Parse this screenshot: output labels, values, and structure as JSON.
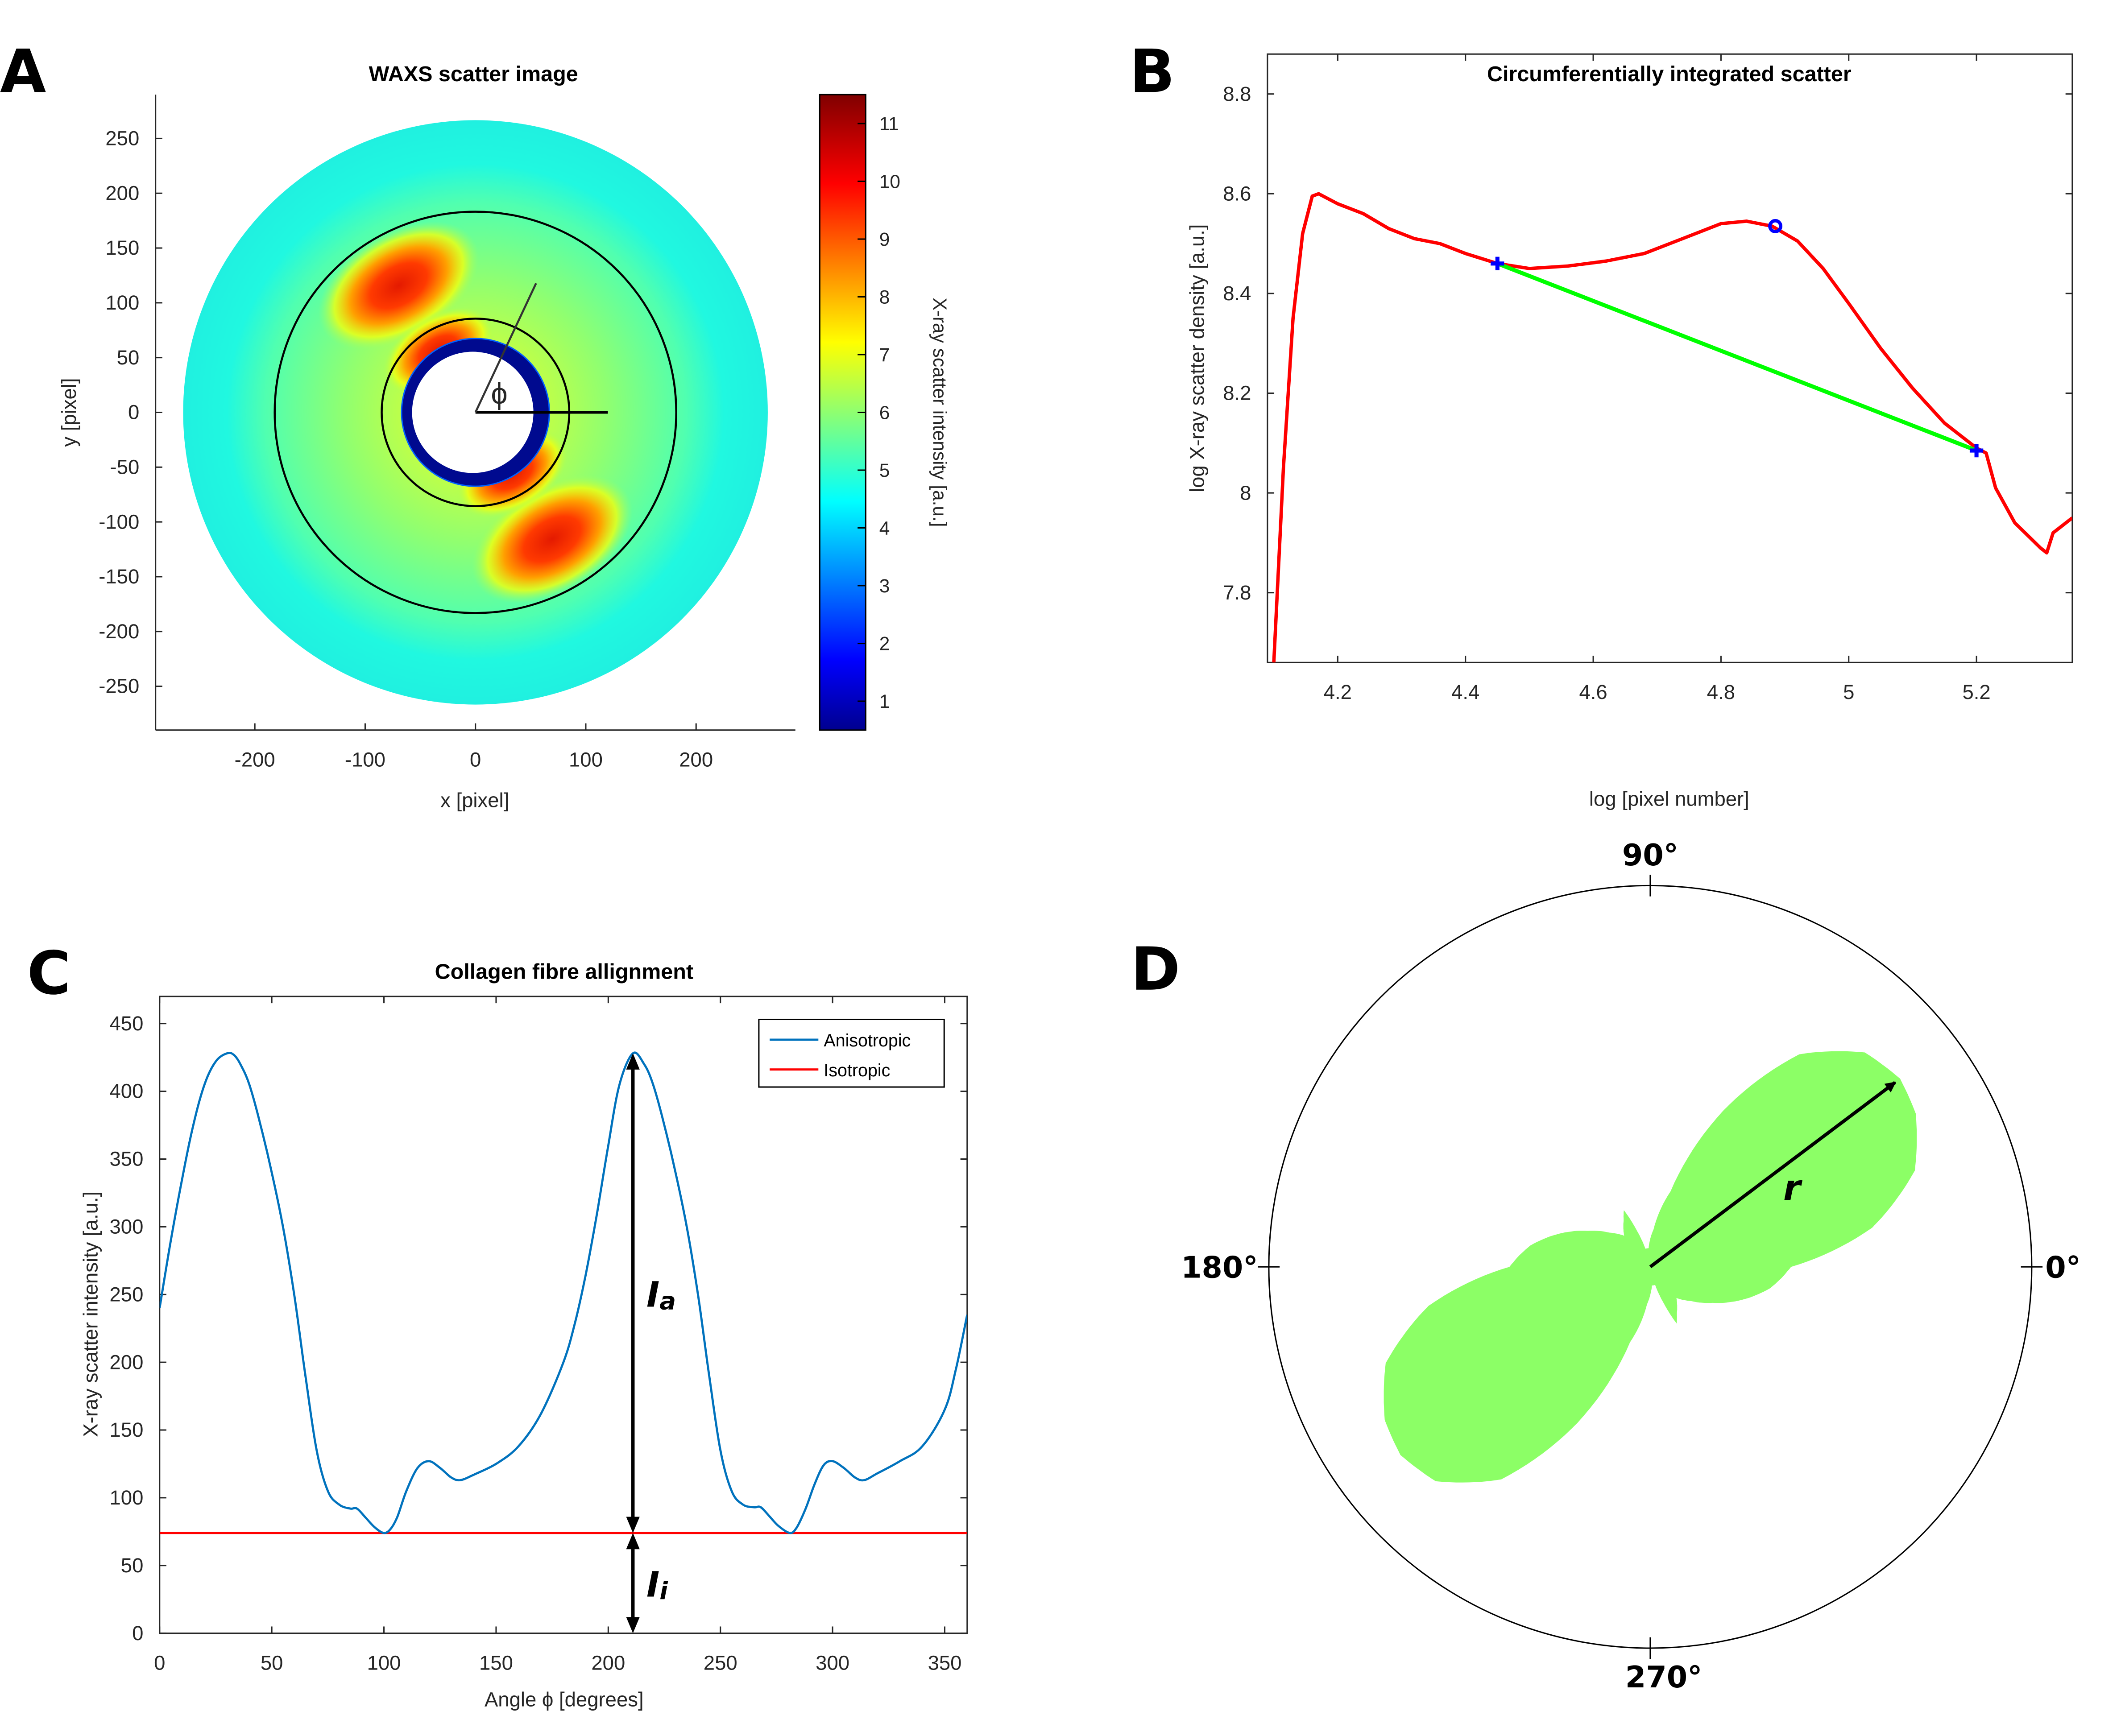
{
  "figure": {
    "panels": [
      "A",
      "B",
      "C",
      "D"
    ]
  },
  "chart_data": [
    {
      "panel": "A",
      "type": "heatmap",
      "title": "WAXS scatter image",
      "xlabel": "x [pixel]",
      "ylabel": "y [pixel]",
      "xlim": [
        -290,
        290
      ],
      "ylim": [
        -290,
        290
      ],
      "xticks": [
        -200,
        -100,
        0,
        100,
        200
      ],
      "yticks": [
        250,
        200,
        150,
        100,
        50,
        0,
        -50,
        -100,
        -150,
        -200,
        -250
      ],
      "colorbar": {
        "label": "X-ray scatter intensity [a.u.]",
        "ticks": [
          11,
          10,
          9,
          8,
          7,
          6,
          5,
          4,
          3,
          2,
          1
        ],
        "range": [
          0.5,
          11.5
        ],
        "colormap": "jet"
      },
      "detector_radius": 265,
      "beamstop_radius": 55,
      "integration_circles_radius": [
        85,
        182
      ],
      "angle_symbol": "ϕ",
      "angle_line_deg": 65,
      "hotspot_angles_deg": [
        121,
        301
      ],
      "background_value": 4.6,
      "hotspot_value": 10.5
    },
    {
      "panel": "B",
      "type": "line",
      "title": "Circumferentially integrated scatter",
      "xlabel": "log [pixel number]",
      "ylabel": "log X-ray scatter density [a.u.]",
      "xlim": [
        4.09,
        5.35
      ],
      "ylim": [
        7.66,
        8.88
      ],
      "xticks": [
        "4.2",
        "4.4",
        "4.6",
        "4.8",
        "5",
        "5.2"
      ],
      "yticks": [
        "7.8",
        "8",
        "8.2",
        "8.4",
        "8.6",
        "8.8"
      ],
      "series": [
        {
          "name": "scatter",
          "color": "#ff0000",
          "x": [
            4.1,
            4.115,
            4.13,
            4.145,
            4.16,
            4.17,
            4.2,
            4.24,
            4.28,
            4.32,
            4.36,
            4.4,
            4.45,
            4.5,
            4.56,
            4.62,
            4.68,
            4.74,
            4.8,
            4.84,
            4.88,
            4.92,
            4.96,
            5.0,
            5.05,
            5.1,
            5.15,
            5.2,
            5.215,
            5.23,
            5.26,
            5.3,
            5.31,
            5.32,
            5.35
          ],
          "y": [
            7.66,
            8.05,
            8.35,
            8.52,
            8.595,
            8.6,
            8.58,
            8.56,
            8.53,
            8.51,
            8.5,
            8.48,
            8.46,
            8.45,
            8.455,
            8.465,
            8.48,
            8.51,
            8.54,
            8.545,
            8.535,
            8.505,
            8.45,
            8.38,
            8.29,
            8.21,
            8.14,
            8.09,
            8.08,
            8.01,
            7.94,
            7.89,
            7.88,
            7.92,
            7.95
          ]
        },
        {
          "name": "baseline",
          "color": "#00ff00",
          "x": [
            4.45,
            5.2
          ],
          "y": [
            8.46,
            8.085
          ]
        }
      ],
      "markers": [
        {
          "shape": "plus",
          "x": 4.45,
          "y": 8.46,
          "color": "#0000ff"
        },
        {
          "shape": "circle",
          "x": 4.885,
          "y": 8.535,
          "color": "#0000ff"
        },
        {
          "shape": "plus",
          "x": 5.2,
          "y": 8.085,
          "color": "#0000ff"
        }
      ]
    },
    {
      "panel": "C",
      "type": "line",
      "title": "Collagen fibre allignment",
      "xlabel": "Angle ϕ [degrees]",
      "ylabel": "X-ray scatter intensity [a.u.]",
      "xlim": [
        0,
        360
      ],
      "ylim": [
        0,
        470
      ],
      "xticks": [
        0,
        50,
        100,
        150,
        200,
        250,
        300,
        350
      ],
      "yticks": [
        0,
        50,
        100,
        150,
        200,
        250,
        300,
        350,
        400,
        450
      ],
      "legend": {
        "position": "top-right",
        "entries": [
          "Anisotropic",
          "Isotropic"
        ]
      },
      "series": [
        {
          "name": "Anisotropic",
          "color": "#0072bd",
          "x": [
            0,
            5,
            10,
            15,
            20,
            25,
            30,
            33,
            36,
            40,
            45,
            50,
            55,
            60,
            65,
            70,
            75,
            80,
            85,
            88,
            92,
            96,
            100,
            103,
            106,
            110,
            115,
            120,
            125,
            130,
            134,
            140,
            150,
            160,
            170,
            180,
            185,
            190,
            195,
            200,
            205,
            211,
            216,
            220,
            225,
            230,
            235,
            240,
            245,
            250,
            255,
            260,
            265,
            268,
            272,
            276,
            281,
            284,
            288,
            292,
            296,
            300,
            305,
            310,
            314,
            320,
            330,
            340,
            350,
            355,
            360
          ],
          "y": [
            240,
            290,
            335,
            375,
            405,
            422,
            428,
            427,
            420,
            405,
            375,
            340,
            300,
            250,
            190,
            135,
            105,
            95,
            92,
            92,
            85,
            78,
            74,
            77,
            86,
            105,
            122,
            127,
            122,
            115,
            113,
            117,
            125,
            138,
            162,
            200,
            228,
            265,
            310,
            360,
            405,
            428,
            420,
            405,
            375,
            340,
            300,
            250,
            190,
            135,
            105,
            95,
            93,
            93,
            86,
            79,
            74,
            78,
            92,
            110,
            124,
            127,
            122,
            115,
            113,
            118,
            127,
            138,
            165,
            195,
            235
          ]
        },
        {
          "name": "Isotropic",
          "color": "#ff0000",
          "x": [
            0,
            360
          ],
          "y": [
            74,
            74
          ]
        }
      ],
      "annotations": [
        {
          "label": "I",
          "subscript": "a",
          "x": 211,
          "y_from": 74,
          "y_to": 428
        },
        {
          "label": "I",
          "subscript": "i",
          "x": 211,
          "y_from": 0,
          "y_to": 74
        }
      ]
    },
    {
      "panel": "D",
      "type": "polar",
      "angle_labels": [
        "90°",
        "180°",
        "0°",
        "270°"
      ],
      "fill_color": "#8cff66",
      "lobe_direction_deg": 37,
      "radius_label": "r",
      "theta_deg": [
        0,
        10,
        20,
        30,
        37,
        45,
        55,
        65,
        75,
        85,
        95,
        105,
        110,
        115,
        120,
        130,
        140,
        150,
        160,
        170,
        180,
        190,
        200,
        210,
        217,
        225,
        235,
        245,
        255,
        265,
        275,
        285,
        290,
        295,
        300,
        310,
        320,
        330,
        340,
        350,
        360
      ],
      "r_norm": [
        0.45,
        0.72,
        0.9,
        0.98,
        1.0,
        0.97,
        0.83,
        0.55,
        0.25,
        0.12,
        0.06,
        0.06,
        0.12,
        0.2,
        0.17,
        0.13,
        0.17,
        0.23,
        0.31,
        0.39,
        0.45,
        0.72,
        0.9,
        0.98,
        1.0,
        0.97,
        0.83,
        0.55,
        0.25,
        0.12,
        0.06,
        0.06,
        0.12,
        0.2,
        0.17,
        0.13,
        0.17,
        0.23,
        0.31,
        0.39,
        0.45
      ]
    }
  ]
}
